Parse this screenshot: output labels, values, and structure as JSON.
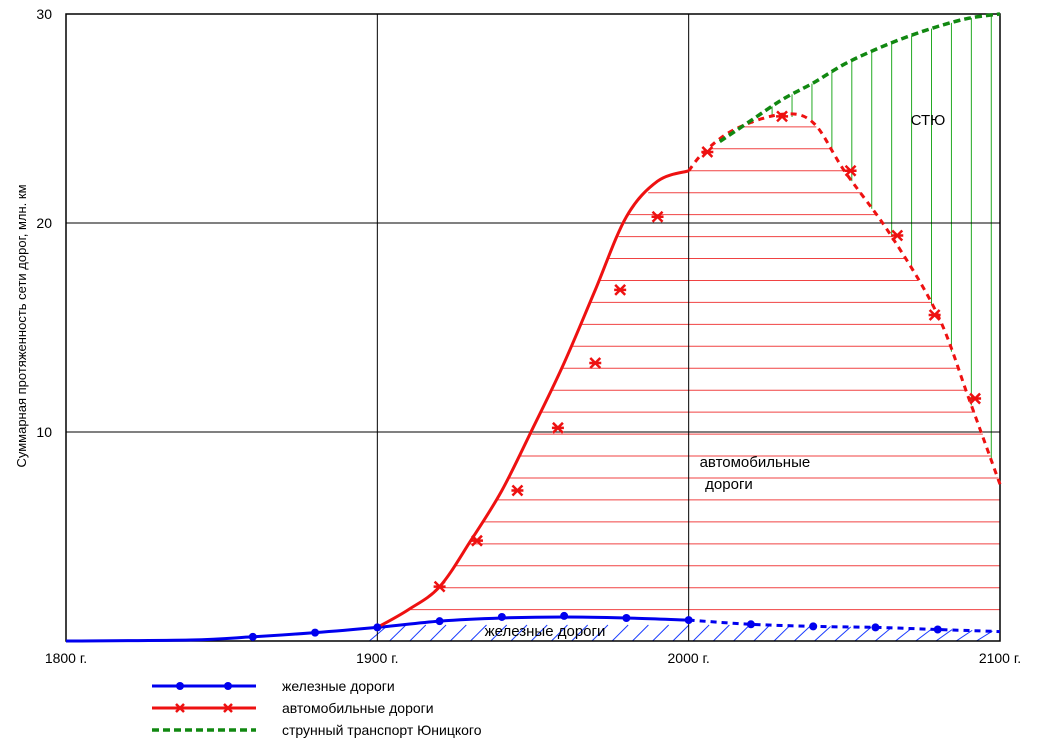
{
  "chart_data": {
    "type": "line",
    "ylabel": "Суммарная протяженность сети дорог, млн. км",
    "xlabel": "",
    "xlim": [
      1800,
      2100
    ],
    "ylim": [
      0,
      30
    ],
    "grid": true,
    "x_ticks": [
      {
        "value": 1800,
        "label": "1800 г."
      },
      {
        "value": 1900,
        "label": "1900 г."
      },
      {
        "value": 2000,
        "label": "2000 г."
      },
      {
        "value": 2100,
        "label": "2100 г."
      }
    ],
    "y_ticks": [
      {
        "value": 10,
        "label": "10"
      },
      {
        "value": 20,
        "label": "20"
      },
      {
        "value": 30,
        "label": "30"
      }
    ],
    "series": [
      {
        "name": "железные дороги",
        "color": "#0000ee",
        "marker": "circle",
        "area_label": "железные дороги",
        "solid": [
          [
            1800,
            0
          ],
          [
            1840,
            0.05
          ],
          [
            1860,
            0.2
          ],
          [
            1880,
            0.4
          ],
          [
            1900,
            0.65
          ],
          [
            1920,
            0.95
          ],
          [
            1940,
            1.1
          ],
          [
            1960,
            1.15
          ],
          [
            1980,
            1.1
          ],
          [
            2000,
            1.0
          ]
        ],
        "projected": [
          [
            2000,
            1.0
          ],
          [
            2020,
            0.8
          ],
          [
            2040,
            0.7
          ],
          [
            2060,
            0.65
          ],
          [
            2080,
            0.55
          ],
          [
            2100,
            0.45
          ]
        ],
        "markers": [
          [
            1860,
            0.2
          ],
          [
            1880,
            0.4
          ],
          [
            1900,
            0.65
          ],
          [
            1920,
            0.95
          ],
          [
            1940,
            1.15
          ],
          [
            1960,
            1.2
          ],
          [
            1980,
            1.1
          ],
          [
            2000,
            1.0
          ],
          [
            2020,
            0.8
          ],
          [
            2040,
            0.7
          ],
          [
            2060,
            0.65
          ],
          [
            2080,
            0.55
          ]
        ]
      },
      {
        "name": "автомобильные дороги",
        "color": "#ee1111",
        "marker": "x",
        "area_label": "автомобильные\nдороги",
        "solid": [
          [
            1900,
            0.65
          ],
          [
            1910,
            1.5
          ],
          [
            1920,
            2.6
          ],
          [
            1930,
            4.8
          ],
          [
            1940,
            7.2
          ],
          [
            1950,
            10.2
          ],
          [
            1960,
            13.3
          ],
          [
            1970,
            16.8
          ],
          [
            1980,
            20.3
          ],
          [
            1990,
            22.0
          ],
          [
            2000,
            22.5
          ]
        ],
        "projected": [
          [
            2000,
            22.5
          ],
          [
            2005,
            23.4
          ],
          [
            2015,
            24.5
          ],
          [
            2030,
            25.2
          ],
          [
            2040,
            24.8
          ],
          [
            2050,
            22.5
          ],
          [
            2065,
            19.4
          ],
          [
            2080,
            15.6
          ],
          [
            2090,
            11.6
          ],
          [
            2100,
            7.5
          ]
        ],
        "markers": [
          [
            1920,
            2.6
          ],
          [
            1932,
            4.8
          ],
          [
            1945,
            7.2
          ],
          [
            1958,
            10.2
          ],
          [
            1970,
            13.3
          ],
          [
            1978,
            16.8
          ],
          [
            1990,
            20.3
          ],
          [
            2006,
            23.4
          ],
          [
            2030,
            25.1
          ],
          [
            2052,
            22.5
          ],
          [
            2067,
            19.4
          ],
          [
            2079,
            15.6
          ],
          [
            2092,
            11.6
          ]
        ]
      },
      {
        "name": "струнный транспорт Юницкого",
        "color": "#118811",
        "marker": "none",
        "area_label": "СТЮ",
        "projected": [
          [
            2010,
            23.9
          ],
          [
            2020,
            24.9
          ],
          [
            2030,
            25.9
          ],
          [
            2040,
            26.7
          ],
          [
            2050,
            27.6
          ],
          [
            2060,
            28.3
          ],
          [
            2070,
            28.9
          ],
          [
            2080,
            29.4
          ],
          [
            2090,
            29.8
          ],
          [
            2100,
            30.0
          ]
        ]
      }
    ]
  }
}
